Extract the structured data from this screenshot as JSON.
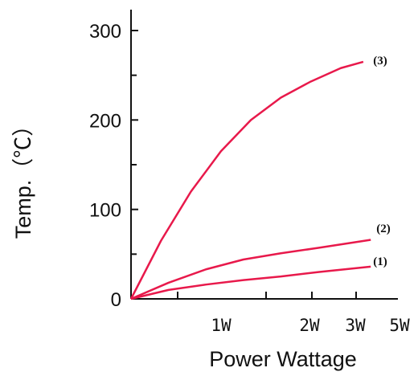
{
  "chart_data": {
    "type": "line",
    "xlabel": "Power Wattage",
    "ylabel": "Temp.（℃）",
    "xlim": [
      0,
      5
    ],
    "ylim": [
      0,
      300
    ],
    "x_ticks": [
      {
        "value": 1,
        "label": "1W"
      },
      {
        "value": 2,
        "label": "2W"
      },
      {
        "value": 3,
        "label": "3W"
      },
      {
        "value": 4,
        "label": "5W"
      }
    ],
    "y_ticks": [
      {
        "value": 0,
        "label": "0"
      },
      {
        "value": 100,
        "label": "100"
      },
      {
        "value": 200,
        "label": "200"
      },
      {
        "value": 300,
        "label": "300"
      }
    ],
    "line_color": "#e8194b",
    "grid": false,
    "series": [
      {
        "name": "(1)",
        "x": [
          0,
          0.5,
          1,
          1.5,
          2,
          2.5,
          3.2
        ],
        "y": [
          0,
          10,
          16,
          21,
          25,
          30,
          36
        ]
      },
      {
        "name": "(2)",
        "x": [
          0,
          0.5,
          1,
          1.5,
          2,
          2.5,
          3.2
        ],
        "y": [
          0,
          18,
          33,
          44,
          51,
          57,
          66
        ]
      },
      {
        "name": "(3)",
        "x": [
          0,
          0.4,
          0.8,
          1.2,
          1.6,
          2.0,
          2.4,
          2.8,
          3.1
        ],
        "y": [
          0,
          65,
          120,
          165,
          200,
          225,
          243,
          258,
          265
        ]
      }
    ]
  }
}
